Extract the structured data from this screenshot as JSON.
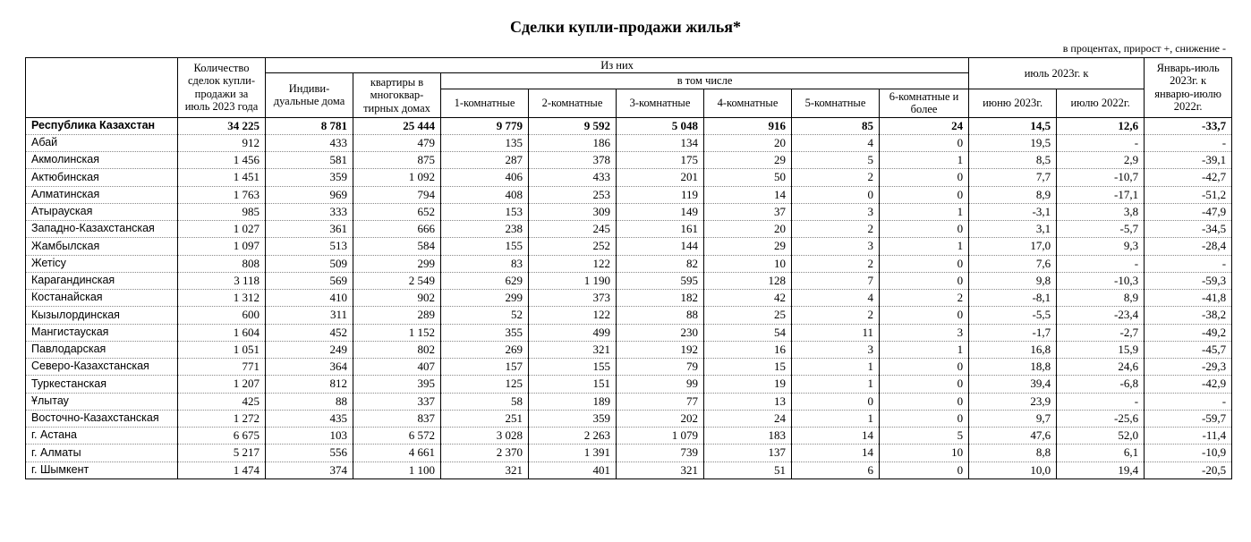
{
  "title": "Сделки купли-продажи жилья*",
  "subtitle": "в процентах, прирост +, снижение -",
  "headers": {
    "region_blank": "",
    "total_deals": "Количество сделок купли-продажи за июль 2023 года",
    "of_them": "Из них",
    "houses": "Индиви-дуальные дома",
    "apts": "квартиры в многоквар-тирных домах",
    "including": "в том числе",
    "r1": "1-комнатные",
    "r2": "2-комнатные",
    "r3": "3-комнатные",
    "r4": "4-комнатные",
    "r5": "5-комнатные",
    "r6": "6-комнатные и более",
    "jul_to": "июль 2023г. к",
    "jun23": "июню 2023г.",
    "jul22": "июлю 2022г.",
    "jan_jul": "Январь-июль 2023г. к январю-июлю 2022г."
  },
  "rows": [
    {
      "region": "Республика Казахстан",
      "total": "34 225",
      "houses": "8 781",
      "apts": "25 444",
      "r1": "9 779",
      "r2": "9 592",
      "r3": "5 048",
      "r4": "916",
      "r5": "85",
      "r6": "24",
      "jun": "14,5",
      "jul": "12,6",
      "yy": "-33,7",
      "bold": true
    },
    {
      "region": "Абай",
      "total": "912",
      "houses": "433",
      "apts": "479",
      "r1": "135",
      "r2": "186",
      "r3": "134",
      "r4": "20",
      "r5": "4",
      "r6": "0",
      "jun": "19,5",
      "jul": "-",
      "yy": "-"
    },
    {
      "region": "Акмолинская",
      "total": "1 456",
      "houses": "581",
      "apts": "875",
      "r1": "287",
      "r2": "378",
      "r3": "175",
      "r4": "29",
      "r5": "5",
      "r6": "1",
      "jun": "8,5",
      "jul": "2,9",
      "yy": "-39,1"
    },
    {
      "region": "Актюбинская",
      "total": "1 451",
      "houses": "359",
      "apts": "1 092",
      "r1": "406",
      "r2": "433",
      "r3": "201",
      "r4": "50",
      "r5": "2",
      "r6": "0",
      "jun": "7,7",
      "jul": "-10,7",
      "yy": "-42,7"
    },
    {
      "region": "Алматинская",
      "total": "1 763",
      "houses": "969",
      "apts": "794",
      "r1": "408",
      "r2": "253",
      "r3": "119",
      "r4": "14",
      "r5": "0",
      "r6": "0",
      "jun": "8,9",
      "jul": "-17,1",
      "yy": "-51,2"
    },
    {
      "region": "Атырауская",
      "total": "985",
      "houses": "333",
      "apts": "652",
      "r1": "153",
      "r2": "309",
      "r3": "149",
      "r4": "37",
      "r5": "3",
      "r6": "1",
      "jun": "-3,1",
      "jul": "3,8",
      "yy": "-47,9"
    },
    {
      "region": "Западно-Казахстанская",
      "total": "1 027",
      "houses": "361",
      "apts": "666",
      "r1": "238",
      "r2": "245",
      "r3": "161",
      "r4": "20",
      "r5": "2",
      "r6": "0",
      "jun": "3,1",
      "jul": "-5,7",
      "yy": "-34,5"
    },
    {
      "region": "Жамбылская",
      "total": "1 097",
      "houses": "513",
      "apts": "584",
      "r1": "155",
      "r2": "252",
      "r3": "144",
      "r4": "29",
      "r5": "3",
      "r6": "1",
      "jun": "17,0",
      "jul": "9,3",
      "yy": "-28,4"
    },
    {
      "region": "Жетісу",
      "total": "808",
      "houses": "509",
      "apts": "299",
      "r1": "83",
      "r2": "122",
      "r3": "82",
      "r4": "10",
      "r5": "2",
      "r6": "0",
      "jun": "7,6",
      "jul": "-",
      "yy": "-"
    },
    {
      "region": "Карагандинская",
      "total": "3 118",
      "houses": "569",
      "apts": "2 549",
      "r1": "629",
      "r2": "1 190",
      "r3": "595",
      "r4": "128",
      "r5": "7",
      "r6": "0",
      "jun": "9,8",
      "jul": "-10,3",
      "yy": "-59,3"
    },
    {
      "region": "Костанайская",
      "total": "1 312",
      "houses": "410",
      "apts": "902",
      "r1": "299",
      "r2": "373",
      "r3": "182",
      "r4": "42",
      "r5": "4",
      "r6": "2",
      "jun": "-8,1",
      "jul": "8,9",
      "yy": "-41,8"
    },
    {
      "region": "Кызылординская",
      "total": "600",
      "houses": "311",
      "apts": "289",
      "r1": "52",
      "r2": "122",
      "r3": "88",
      "r4": "25",
      "r5": "2",
      "r6": "0",
      "jun": "-5,5",
      "jul": "-23,4",
      "yy": "-38,2"
    },
    {
      "region": "Мангистауская",
      "total": "1 604",
      "houses": "452",
      "apts": "1 152",
      "r1": "355",
      "r2": "499",
      "r3": "230",
      "r4": "54",
      "r5": "11",
      "r6": "3",
      "jun": "-1,7",
      "jul": "-2,7",
      "yy": "-49,2"
    },
    {
      "region": "Павлодарская",
      "total": "1 051",
      "houses": "249",
      "apts": "802",
      "r1": "269",
      "r2": "321",
      "r3": "192",
      "r4": "16",
      "r5": "3",
      "r6": "1",
      "jun": "16,8",
      "jul": "15,9",
      "yy": "-45,7"
    },
    {
      "region": "Северо-Казахстанская",
      "total": "771",
      "houses": "364",
      "apts": "407",
      "r1": "157",
      "r2": "155",
      "r3": "79",
      "r4": "15",
      "r5": "1",
      "r6": "0",
      "jun": "18,8",
      "jul": "24,6",
      "yy": "-29,3"
    },
    {
      "region": "Туркестанская",
      "total": "1 207",
      "houses": "812",
      "apts": "395",
      "r1": "125",
      "r2": "151",
      "r3": "99",
      "r4": "19",
      "r5": "1",
      "r6": "0",
      "jun": "39,4",
      "jul": "-6,8",
      "yy": "-42,9"
    },
    {
      "region": "Ұлытау",
      "total": "425",
      "houses": "88",
      "apts": "337",
      "r1": "58",
      "r2": "189",
      "r3": "77",
      "r4": "13",
      "r5": "0",
      "r6": "0",
      "jun": "23,9",
      "jul": "-",
      "yy": "-"
    },
    {
      "region": "Восточно-Казахстанская",
      "total": "1 272",
      "houses": "435",
      "apts": "837",
      "r1": "251",
      "r2": "359",
      "r3": "202",
      "r4": "24",
      "r5": "1",
      "r6": "0",
      "jun": "9,7",
      "jul": "-25,6",
      "yy": "-59,7"
    },
    {
      "region": "г. Астана",
      "total": "6 675",
      "houses": "103",
      "apts": "6 572",
      "r1": "3 028",
      "r2": "2 263",
      "r3": "1 079",
      "r4": "183",
      "r5": "14",
      "r6": "5",
      "jun": "47,6",
      "jul": "52,0",
      "yy": "-11,4"
    },
    {
      "region": "г. Алматы",
      "total": "5 217",
      "houses": "556",
      "apts": "4 661",
      "r1": "2 370",
      "r2": "1 391",
      "r3": "739",
      "r4": "137",
      "r5": "14",
      "r6": "10",
      "jun": "8,8",
      "jul": "6,1",
      "yy": "-10,9"
    },
    {
      "region": "г. Шымкент",
      "total": "1 474",
      "houses": "374",
      "apts": "1 100",
      "r1": "321",
      "r2": "401",
      "r3": "321",
      "r4": "51",
      "r5": "6",
      "r6": "0",
      "jun": "10,0",
      "jul": "19,4",
      "yy": "-20,5"
    }
  ]
}
